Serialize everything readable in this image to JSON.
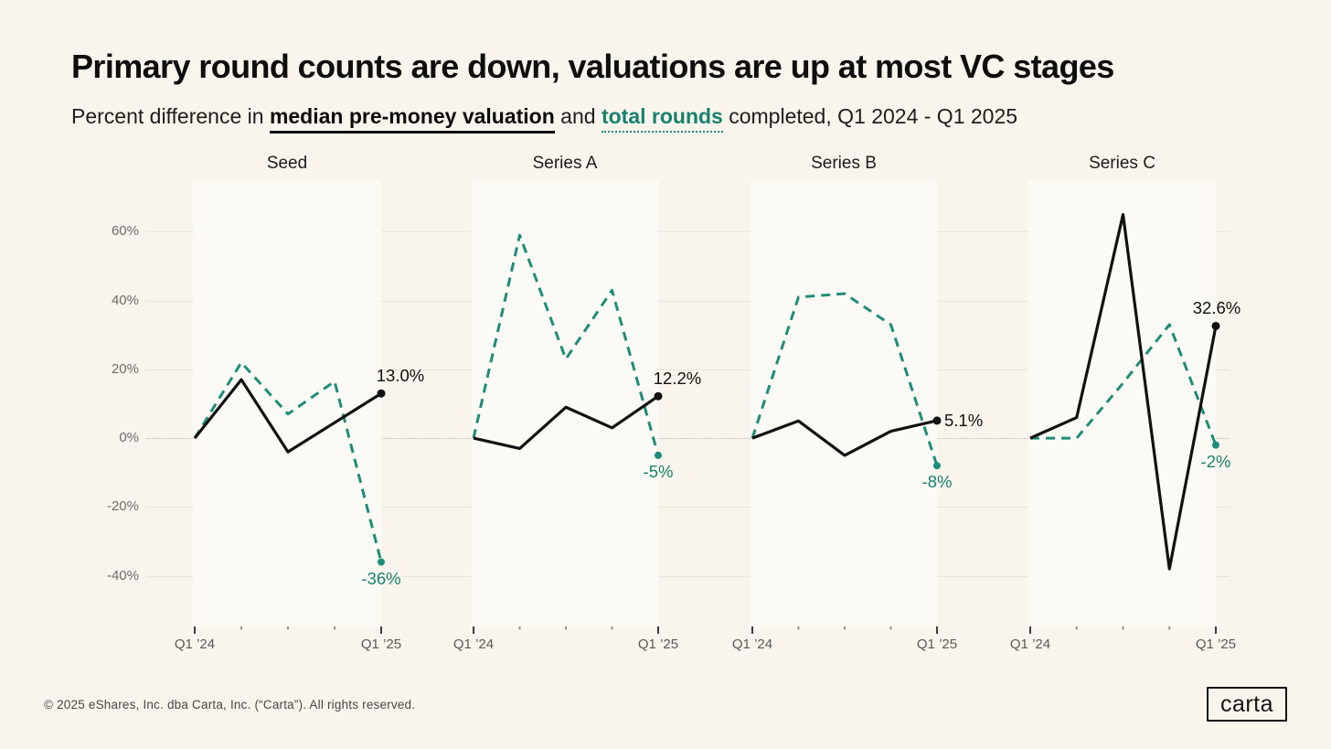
{
  "header": {
    "title": "Primary round counts are down, valuations are up at most VC stages",
    "subtitle_prefix": "Percent difference in ",
    "valuation_term": "median pre-money valuation",
    "subtitle_mid": " and ",
    "rounds_term": "total rounds",
    "subtitle_suffix": " completed, Q1 2024 - Q1 2025"
  },
  "colors": {
    "background": "#FAF5EC",
    "facet_band": "#FCFAF4",
    "valuation_line": "#111111",
    "rounds_line": "#1E8C7A",
    "rounds_text": "#17816E",
    "gridline": "#E8E4D9",
    "zero_line": "#BDB8AC"
  },
  "chart_data": {
    "type": "line",
    "title": "Primary round counts are down, valuations are up at most VC stages",
    "subtitle": "Percent difference in median pre-money valuation and total rounds completed, Q1 2024 - Q1 2025",
    "x_tick_labels": [
      "Q1 ’24",
      "",
      "",
      "",
      "Q1 ’25"
    ],
    "ylim": [
      -55,
      75
    ],
    "yticks": [
      60,
      40,
      20,
      0,
      -20,
      -40
    ],
    "ytick_labels": [
      "60%",
      "40%",
      "20%",
      "0%",
      "-20%",
      "-40%"
    ],
    "grid": true,
    "legend": {
      "valuation": "median pre-money valuation",
      "rounds": "total rounds"
    },
    "facets": [
      {
        "title": "Seed",
        "valuation": [
          0,
          17,
          -4,
          4.5,
          13.0
        ],
        "rounds": [
          0,
          22,
          7,
          16.5,
          -36
        ],
        "valuation_label": "13.0%",
        "rounds_label": "-36%",
        "valuation_label_pos": "above-right"
      },
      {
        "title": "Series A",
        "valuation": [
          0,
          -3,
          9,
          3,
          12.2
        ],
        "rounds": [
          0,
          59,
          23,
          43,
          -5
        ],
        "valuation_label": "12.2%",
        "rounds_label": "-5%",
        "valuation_label_pos": "above-right"
      },
      {
        "title": "Series B",
        "valuation": [
          0,
          5,
          -5,
          2,
          5.1
        ],
        "rounds": [
          0,
          41,
          42,
          33,
          -8
        ],
        "valuation_label": "5.1%",
        "rounds_label": "-8%",
        "valuation_label_pos": "right"
      },
      {
        "title": "Series C",
        "valuation": [
          0,
          6,
          65,
          -38,
          32.6
        ],
        "rounds": [
          0,
          0,
          16,
          33,
          -2
        ],
        "valuation_label": "32.6%",
        "rounds_label": "-2%",
        "valuation_label_pos": "above"
      }
    ]
  },
  "footer": {
    "copyright": "© 2025 eShares, Inc. dba Carta, Inc. (“Carta”). All rights reserved.",
    "logo_text": "carta"
  }
}
